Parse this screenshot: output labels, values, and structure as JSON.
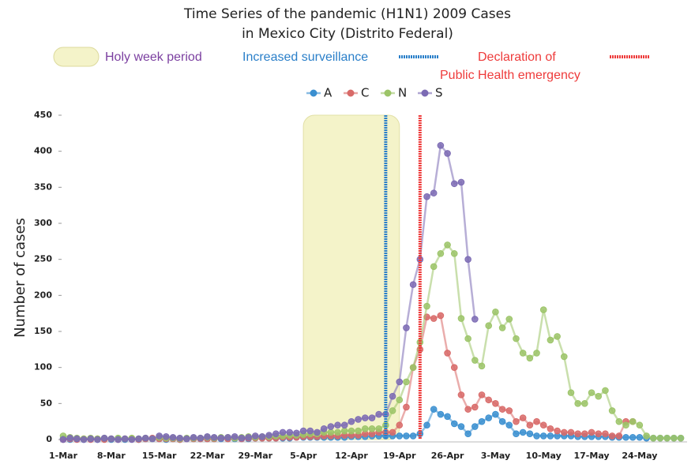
{
  "chart_data": {
    "type": "line",
    "title": [
      "Time Series of the pandemic (H1N1) 2009 Cases",
      "in Mexico City (Distrito Federal)"
    ],
    "y_label": "Number of cases",
    "ylim": [
      0,
      450
    ],
    "yticks": [
      0,
      50,
      100,
      150,
      200,
      250,
      300,
      350,
      400,
      450
    ],
    "categories": [
      "1-Mar",
      null,
      null,
      null,
      null,
      null,
      null,
      "8-Mar",
      null,
      null,
      null,
      null,
      null,
      null,
      "15-Mar",
      null,
      null,
      null,
      null,
      null,
      null,
      "22-Mar",
      null,
      null,
      null,
      null,
      null,
      null,
      "29-Mar",
      null,
      null,
      null,
      null,
      null,
      null,
      "5-Apr",
      null,
      null,
      null,
      null,
      null,
      null,
      "12-Apr",
      null,
      null,
      null,
      null,
      null,
      null,
      "19-Apr",
      null,
      null,
      null,
      null,
      null,
      null,
      "26-Apr",
      null,
      null,
      null,
      null,
      null,
      null,
      "3-May",
      null,
      null,
      null,
      null,
      null,
      null,
      "10-May",
      null,
      null,
      null,
      null,
      null,
      null,
      "17-May",
      null,
      null,
      null,
      null,
      null,
      null,
      "24-May",
      null,
      null,
      null,
      null,
      null,
      null
    ],
    "series": [
      {
        "name": "A",
        "color": "#3a8fd0",
        "values": [
          1,
          0,
          1,
          0,
          1,
          0,
          1,
          0,
          1,
          0,
          1,
          0,
          1,
          1,
          1,
          0,
          1,
          0,
          1,
          1,
          1,
          1,
          1,
          1,
          1,
          1,
          1,
          1,
          2,
          2,
          2,
          2,
          2,
          2,
          3,
          3,
          3,
          3,
          3,
          3,
          3,
          3,
          4,
          4,
          4,
          5,
          5,
          5,
          5,
          5,
          5,
          5,
          8,
          20,
          42,
          35,
          32,
          22,
          18,
          8,
          18,
          25,
          30,
          35,
          25,
          20,
          8,
          10,
          8,
          5,
          5,
          5,
          5,
          5,
          5,
          4,
          4,
          4,
          4,
          4,
          3,
          3,
          3,
          3,
          3,
          2,
          2,
          2,
          2,
          2,
          2
        ]
      },
      {
        "name": "C",
        "color": "#d86a68",
        "values": [
          0,
          1,
          0,
          1,
          0,
          1,
          0,
          1,
          0,
          1,
          1,
          0,
          1,
          2,
          1,
          1,
          1,
          0,
          1,
          1,
          1,
          1,
          1,
          2,
          1,
          2,
          1,
          2,
          2,
          2,
          2,
          2,
          3,
          3,
          3,
          4,
          4,
          4,
          5,
          5,
          5,
          6,
          6,
          6,
          8,
          8,
          10,
          10,
          10,
          20,
          45,
          100,
          125,
          170,
          168,
          172,
          120,
          100,
          62,
          42,
          45,
          62,
          55,
          50,
          42,
          40,
          25,
          30,
          20,
          25,
          20,
          15,
          12,
          10,
          10,
          8,
          8,
          10,
          8,
          8,
          5,
          5,
          25,
          25,
          null,
          null,
          null,
          null,
          null,
          null,
          null
        ]
      },
      {
        "name": "N",
        "color": "#9cc468",
        "values": [
          5,
          3,
          2,
          1,
          2,
          1,
          2,
          1,
          2,
          1,
          2,
          1,
          2,
          1,
          3,
          2,
          2,
          1,
          2,
          2,
          2,
          3,
          2,
          3,
          3,
          2,
          3,
          4,
          3,
          4,
          4,
          5,
          5,
          6,
          6,
          7,
          8,
          8,
          10,
          10,
          10,
          12,
          12,
          12,
          15,
          15,
          15,
          20,
          40,
          55,
          80,
          100,
          135,
          185,
          240,
          258,
          270,
          258,
          168,
          140,
          110,
          102,
          158,
          177,
          155,
          167,
          140,
          120,
          113,
          120,
          180,
          138,
          143,
          115,
          65,
          50,
          50,
          65,
          60,
          68,
          40,
          25,
          20,
          25,
          20,
          5,
          2,
          2,
          2,
          2,
          2
        ]
      },
      {
        "name": "S",
        "color": "#7c6bb4",
        "values": [
          0,
          2,
          1,
          0,
          1,
          0,
          2,
          1,
          0,
          1,
          0,
          1,
          2,
          1,
          5,
          4,
          3,
          2,
          1,
          3,
          2,
          4,
          3,
          2,
          3,
          4,
          2,
          3,
          5,
          4,
          6,
          8,
          10,
          10,
          9,
          12,
          12,
          10,
          15,
          18,
          20,
          20,
          25,
          28,
          30,
          30,
          35,
          35,
          60,
          80,
          155,
          215,
          250,
          337,
          342,
          408,
          397,
          355,
          357,
          250,
          167,
          null,
          null,
          null,
          null,
          null,
          null,
          null,
          null,
          null,
          null,
          null,
          null,
          null,
          null,
          null,
          null,
          null,
          null,
          null,
          null,
          null,
          null,
          null,
          null,
          null,
          null,
          null,
          null,
          null,
          null
        ]
      }
    ],
    "annotations": [
      {
        "text": [
          "Holy week period"
        ],
        "kind": "band",
        "start": "5-Apr",
        "end": "19-Apr",
        "color": "#7b3fa0",
        "fill": "#f4f3c9"
      },
      {
        "text": [
          "Increased surveillance"
        ],
        "kind": "line",
        "at": "17-Apr",
        "color": "#2a7fc9"
      },
      {
        "text": [
          "Declaration of",
          "Public Health emergency"
        ],
        "kind": "line",
        "at": "22-Apr",
        "color": "#ee3b3b"
      }
    ]
  }
}
